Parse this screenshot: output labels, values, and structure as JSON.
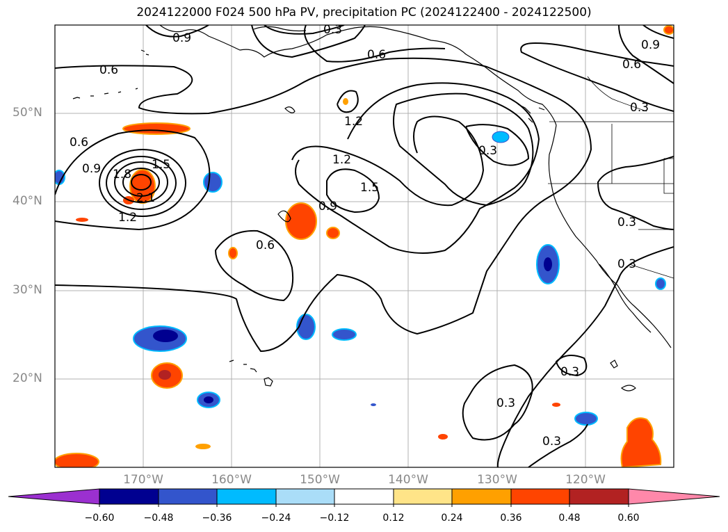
{
  "title": "2024122000 F024 500 hPa PV, precipitation PC (2024122400 - 2024122500)",
  "map": {
    "projection": "PlateCarree",
    "lon_range": [
      -180,
      -110
    ],
    "lat_range": [
      10,
      60
    ],
    "gridlines": true,
    "lat_ticks": [
      "50°N",
      "40°N",
      "30°N",
      "20°N"
    ],
    "lon_ticks": [
      "170°W",
      "160°W",
      "150°W",
      "140°W",
      "130°W",
      "120°W"
    ]
  },
  "pv_contours": {
    "color": "#000000",
    "labels": [
      "0.9",
      "0.3",
      "0.6",
      "0.6",
      "0.6",
      "0.9",
      "1.8",
      "1.5",
      "1.2",
      "2.1",
      "1.2",
      "1.2",
      "1.5",
      "0.9",
      "0.6",
      "0.3",
      "0.3",
      "0.3",
      "0.3",
      "0.9",
      "0.6",
      "0.3",
      "0.3",
      "0.3"
    ]
  },
  "colorbar": {
    "ticks": [
      "−0.60",
      "−0.48",
      "−0.36",
      "−0.24",
      "−0.12",
      "0.12",
      "0.24",
      "0.36",
      "0.48",
      "0.60"
    ],
    "colors": [
      "#9b30d0",
      "#000090",
      "#3355cc",
      "#00bbff",
      "#aaddf8",
      "#ffffff",
      "#ffe488",
      "#ffa000",
      "#ff4400",
      "#b22222",
      "#ff88aa"
    ],
    "extend": "both"
  }
}
